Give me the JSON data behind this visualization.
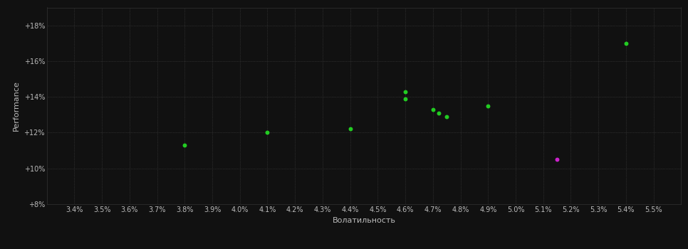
{
  "xlabel": "Волатильность",
  "ylabel": "Performance",
  "background_color": "#111111",
  "text_color": "#bbbbbb",
  "xlim": [
    0.033,
    0.056
  ],
  "ylim": [
    0.08,
    0.19
  ],
  "green_points": [
    [
      0.038,
      0.113
    ],
    [
      0.041,
      0.12
    ],
    [
      0.044,
      0.122
    ],
    [
      0.046,
      0.143
    ],
    [
      0.046,
      0.139
    ],
    [
      0.047,
      0.133
    ],
    [
      0.0472,
      0.131
    ],
    [
      0.0475,
      0.129
    ],
    [
      0.049,
      0.135
    ],
    [
      0.054,
      0.17
    ]
  ],
  "magenta_points": [
    [
      0.0515,
      0.105
    ]
  ],
  "green_color": "#22cc22",
  "magenta_color": "#cc22cc",
  "font_size_ticks": 7,
  "font_size_label": 8
}
